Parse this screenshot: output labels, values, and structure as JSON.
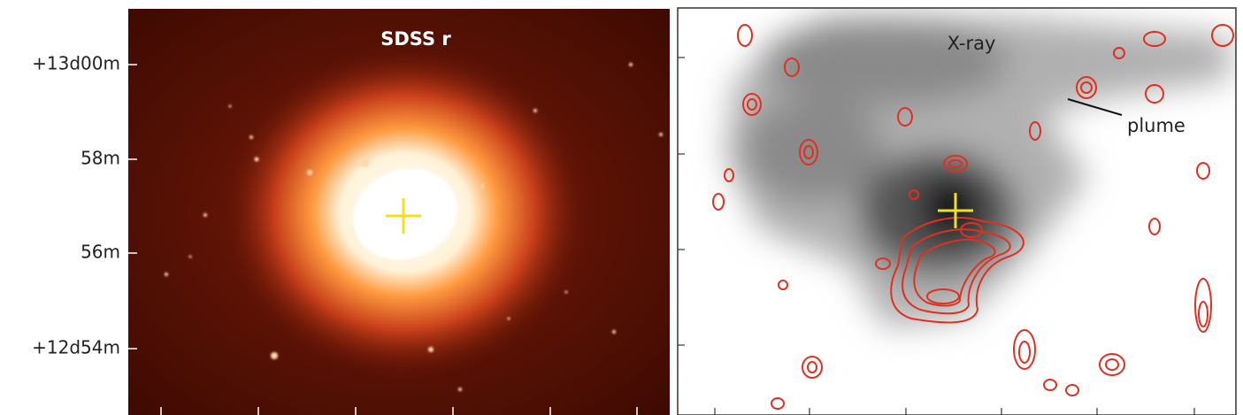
{
  "figure": {
    "y_axis_labels": [
      "+13d00m",
      "58m",
      "56m",
      "+12d54m"
    ],
    "left_panel": {
      "title": "SDSS r"
    },
    "right_panel": {
      "title": "X-ray",
      "annotation": "plume"
    }
  }
}
